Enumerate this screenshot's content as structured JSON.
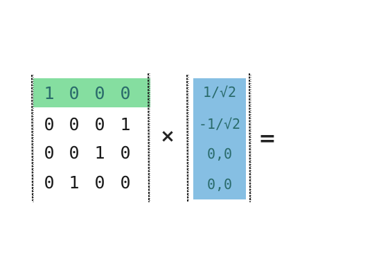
{
  "matrix": {
    "rows": [
      [
        "1",
        "0",
        "0",
        "0"
      ],
      [
        "0",
        "0",
        "0",
        "1"
      ],
      [
        "0",
        "0",
        "1",
        "0"
      ],
      [
        "0",
        "1",
        "0",
        "0"
      ]
    ],
    "highlighted_row": 0,
    "highlight_color": "#85dea0",
    "text_color": "#1a1a1a",
    "highlight_text_color": "#2a6b6b"
  },
  "operator_multiply": "×",
  "vector": {
    "values": [
      "1/√2",
      "-1/√2",
      "0,0",
      "0,0"
    ],
    "fill_color": "#86bfe3",
    "text_color": "#2a6b6b"
  },
  "operator_equals": "="
}
